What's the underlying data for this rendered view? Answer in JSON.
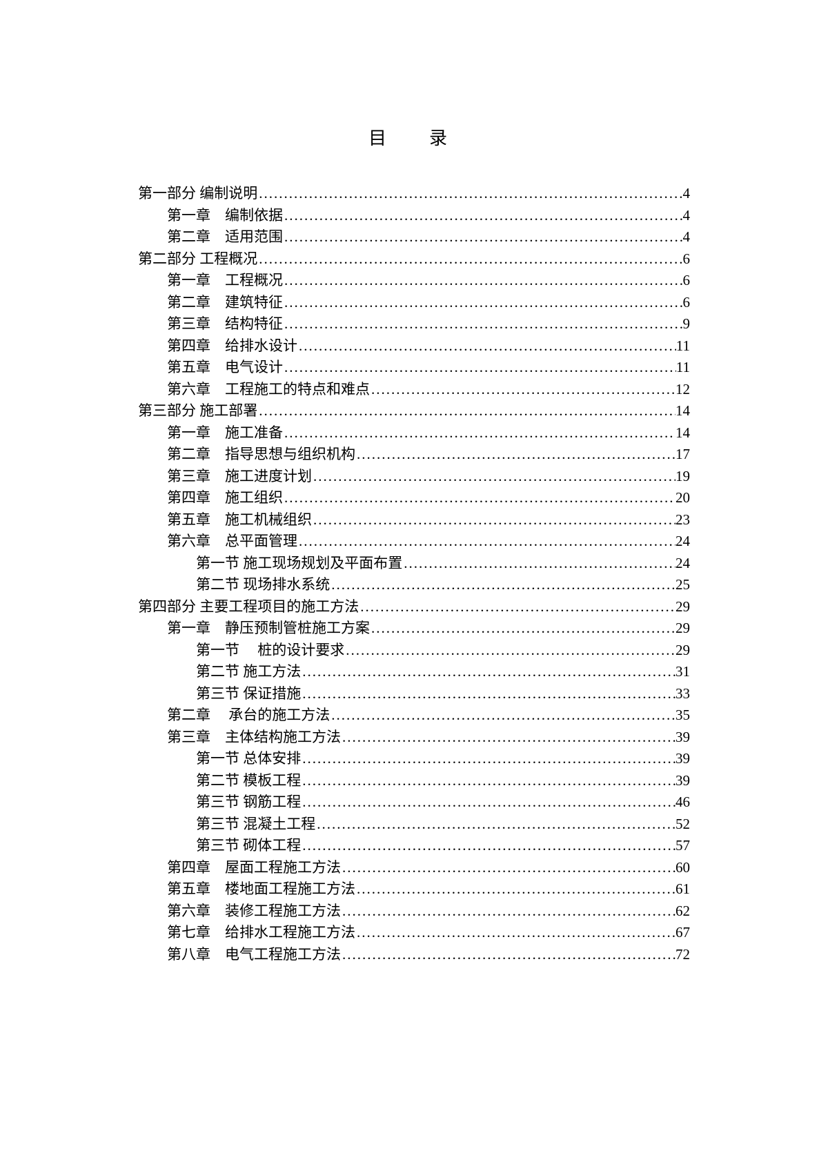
{
  "title": "目　录",
  "dot_char": ".",
  "text_color": "#000000",
  "background_color": "#ffffff",
  "entries": [
    {
      "level": 0,
      "label": "第一部分 编制说明",
      "page": 4
    },
    {
      "level": 1,
      "label": "第一章　编制依据",
      "page": 4
    },
    {
      "level": 1,
      "label": "第二章　适用范围",
      "page": 4
    },
    {
      "level": 0,
      "label": "第二部分 工程概况",
      "page": 6
    },
    {
      "level": 1,
      "label": "第一章　工程概况",
      "page": 6
    },
    {
      "level": 1,
      "label": "第二章　建筑特征",
      "page": 6
    },
    {
      "level": 1,
      "label": "第三章　结构特征",
      "page": 9
    },
    {
      "level": 1,
      "label": "第四章　给排水设计",
      "page": 11
    },
    {
      "level": 1,
      "label": "第五章　电气设计",
      "page": 11
    },
    {
      "level": 1,
      "label": "第六章　工程施工的特点和难点",
      "page": 12
    },
    {
      "level": 0,
      "label": "第三部分 施工部署",
      "page": 14
    },
    {
      "level": 1,
      "label": "第一章　施工准备",
      "page": 14
    },
    {
      "level": 1,
      "label": "第二章　指导思想与组织机构",
      "page": 17
    },
    {
      "level": 1,
      "label": "第三章　施工进度计划",
      "page": 19
    },
    {
      "level": 1,
      "label": "第四章　施工组织",
      "page": 20
    },
    {
      "level": 1,
      "label": "第五章　施工机械组织",
      "page": 23
    },
    {
      "level": 1,
      "label": "第六章　总平面管理",
      "page": 24
    },
    {
      "level": 2,
      "label": "第一节 施工现场规划及平面布置",
      "page": 24
    },
    {
      "level": 2,
      "label": "第二节 现场排水系统",
      "page": 25
    },
    {
      "level": 0,
      "label": "第四部分 主要工程项目的施工方法",
      "page": 29
    },
    {
      "level": 1,
      "label": "第一章　静压预制管桩施工方案",
      "page": 29
    },
    {
      "level": 3,
      "label": "第一节 　桩的设计要求",
      "page": 29
    },
    {
      "level": 2,
      "label": "第二节 施工方法",
      "page": 31
    },
    {
      "level": 2,
      "label": "第三节 保证措施",
      "page": 33
    },
    {
      "level": 1,
      "label": "第二章 　承台的施工方法",
      "page": 35
    },
    {
      "level": 1,
      "label": "第三章　主体结构施工方法",
      "page": 39
    },
    {
      "level": 2,
      "label": "第一节 总体安排",
      "page": 39
    },
    {
      "level": 2,
      "label": "第二节 模板工程",
      "page": 39
    },
    {
      "level": 2,
      "label": "第三节 钢筋工程",
      "page": 46
    },
    {
      "level": 2,
      "label": "第三节 混凝土工程",
      "page": 52
    },
    {
      "level": 2,
      "label": "第三节 砌体工程",
      "page": 57
    },
    {
      "level": 1,
      "label": "第四章　屋面工程施工方法",
      "page": 60
    },
    {
      "level": 1,
      "label": "第五章　楼地面工程施工方法",
      "page": 61
    },
    {
      "level": 1,
      "label": "第六章　装修工程施工方法",
      "page": 62
    },
    {
      "level": 1,
      "label": "第七章　给排水工程施工方法",
      "page": 67
    },
    {
      "level": 1,
      "label": "第八章　电气工程施工方法",
      "page": 72
    }
  ]
}
